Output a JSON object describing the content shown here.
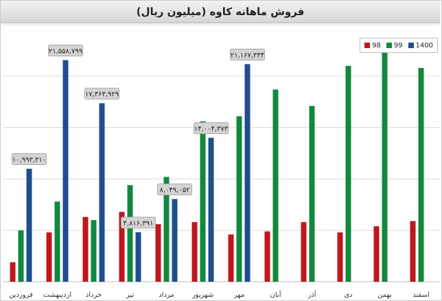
{
  "chart_data": {
    "type": "bar",
    "title": "فروش ماهانه کاوه (میلیون ریال)",
    "categories": [
      "فروردین",
      "اردیبهشت",
      "خرداد",
      "تیر",
      "مرداد",
      "شهریور",
      "مهر",
      "آبان",
      "آذر",
      "دی",
      "بهمن",
      "اسفند"
    ],
    "series": [
      {
        "name": "98",
        "color": "#c0161d",
        "values": [
          1900000,
          4800000,
          6300000,
          6800000,
          5600000,
          5800000,
          4600000,
          4900000,
          5800000,
          4800000,
          5400000,
          5900000
        ]
      },
      {
        "name": "99",
        "color": "#10893e",
        "values": [
          5000000,
          7800000,
          6000000,
          9400000,
          10200000,
          15600000,
          16100000,
          18700000,
          17100000,
          21000000,
          23200000,
          20800000
        ]
      },
      {
        "name": "1400",
        "color": "#1f4e8c",
        "values": [
          10993310,
          21558799,
          17363929,
          4816391,
          8049052,
          14004373,
          21167334,
          null,
          null,
          null,
          null,
          null
        ]
      }
    ],
    "data_labels": [
      {
        "category": 0,
        "text": "۱۰,۹۹۳,۳۱۰"
      },
      {
        "category": 1,
        "text": "۲۱,۵۵۸,۷۹۹"
      },
      {
        "category": 2,
        "text": "۱۷,۳۶۳,۹۲۹"
      },
      {
        "category": 3,
        "text": "۴,۸۱۶,۳۹۱"
      },
      {
        "category": 4,
        "text": "۸,۰۴۹,۰۵۲"
      },
      {
        "category": 5,
        "text": "۱۴,۰۰۴,۳۷۳"
      },
      {
        "category": 6,
        "text": "۲۱,۱۶۷,۳۳۴"
      }
    ],
    "ylim": [
      0,
      25000000
    ],
    "grid": true,
    "legend_position": "top-right"
  }
}
